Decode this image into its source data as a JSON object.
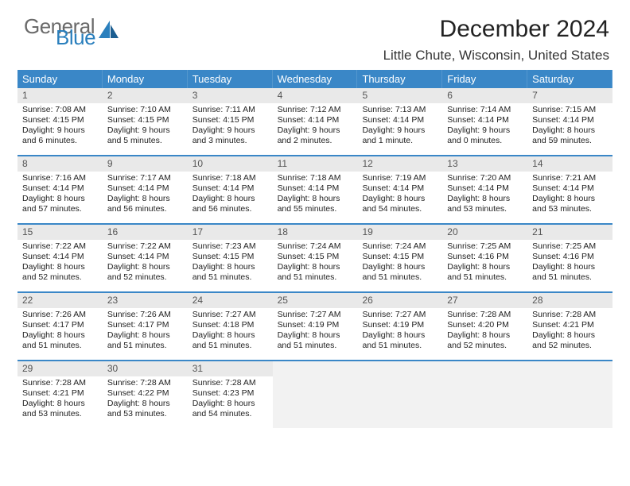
{
  "logo": {
    "line1": "General",
    "line2": "Blue"
  },
  "title": "December 2024",
  "subtitle": "Little Chute, Wisconsin, United States",
  "colors": {
    "header_bg": "#3a87c7",
    "header_fg": "#ffffff",
    "daynum_bg": "#e9e9e9",
    "daynum_fg": "#555555",
    "week_divider": "#3a87c7",
    "logo_gray": "#6a6a6a",
    "logo_blue": "#2a7fbd",
    "body_bg": "#ffffff",
    "text": "#222222"
  },
  "day_headers": [
    "Sunday",
    "Monday",
    "Tuesday",
    "Wednesday",
    "Thursday",
    "Friday",
    "Saturday"
  ],
  "weeks": [
    [
      {
        "n": "1",
        "sr": "Sunrise: 7:08 AM",
        "ss": "Sunset: 4:15 PM",
        "d1": "Daylight: 9 hours",
        "d2": "and 6 minutes."
      },
      {
        "n": "2",
        "sr": "Sunrise: 7:10 AM",
        "ss": "Sunset: 4:15 PM",
        "d1": "Daylight: 9 hours",
        "d2": "and 5 minutes."
      },
      {
        "n": "3",
        "sr": "Sunrise: 7:11 AM",
        "ss": "Sunset: 4:15 PM",
        "d1": "Daylight: 9 hours",
        "d2": "and 3 minutes."
      },
      {
        "n": "4",
        "sr": "Sunrise: 7:12 AM",
        "ss": "Sunset: 4:14 PM",
        "d1": "Daylight: 9 hours",
        "d2": "and 2 minutes."
      },
      {
        "n": "5",
        "sr": "Sunrise: 7:13 AM",
        "ss": "Sunset: 4:14 PM",
        "d1": "Daylight: 9 hours",
        "d2": "and 1 minute."
      },
      {
        "n": "6",
        "sr": "Sunrise: 7:14 AM",
        "ss": "Sunset: 4:14 PM",
        "d1": "Daylight: 9 hours",
        "d2": "and 0 minutes."
      },
      {
        "n": "7",
        "sr": "Sunrise: 7:15 AM",
        "ss": "Sunset: 4:14 PM",
        "d1": "Daylight: 8 hours",
        "d2": "and 59 minutes."
      }
    ],
    [
      {
        "n": "8",
        "sr": "Sunrise: 7:16 AM",
        "ss": "Sunset: 4:14 PM",
        "d1": "Daylight: 8 hours",
        "d2": "and 57 minutes."
      },
      {
        "n": "9",
        "sr": "Sunrise: 7:17 AM",
        "ss": "Sunset: 4:14 PM",
        "d1": "Daylight: 8 hours",
        "d2": "and 56 minutes."
      },
      {
        "n": "10",
        "sr": "Sunrise: 7:18 AM",
        "ss": "Sunset: 4:14 PM",
        "d1": "Daylight: 8 hours",
        "d2": "and 56 minutes."
      },
      {
        "n": "11",
        "sr": "Sunrise: 7:18 AM",
        "ss": "Sunset: 4:14 PM",
        "d1": "Daylight: 8 hours",
        "d2": "and 55 minutes."
      },
      {
        "n": "12",
        "sr": "Sunrise: 7:19 AM",
        "ss": "Sunset: 4:14 PM",
        "d1": "Daylight: 8 hours",
        "d2": "and 54 minutes."
      },
      {
        "n": "13",
        "sr": "Sunrise: 7:20 AM",
        "ss": "Sunset: 4:14 PM",
        "d1": "Daylight: 8 hours",
        "d2": "and 53 minutes."
      },
      {
        "n": "14",
        "sr": "Sunrise: 7:21 AM",
        "ss": "Sunset: 4:14 PM",
        "d1": "Daylight: 8 hours",
        "d2": "and 53 minutes."
      }
    ],
    [
      {
        "n": "15",
        "sr": "Sunrise: 7:22 AM",
        "ss": "Sunset: 4:14 PM",
        "d1": "Daylight: 8 hours",
        "d2": "and 52 minutes."
      },
      {
        "n": "16",
        "sr": "Sunrise: 7:22 AM",
        "ss": "Sunset: 4:14 PM",
        "d1": "Daylight: 8 hours",
        "d2": "and 52 minutes."
      },
      {
        "n": "17",
        "sr": "Sunrise: 7:23 AM",
        "ss": "Sunset: 4:15 PM",
        "d1": "Daylight: 8 hours",
        "d2": "and 51 minutes."
      },
      {
        "n": "18",
        "sr": "Sunrise: 7:24 AM",
        "ss": "Sunset: 4:15 PM",
        "d1": "Daylight: 8 hours",
        "d2": "and 51 minutes."
      },
      {
        "n": "19",
        "sr": "Sunrise: 7:24 AM",
        "ss": "Sunset: 4:15 PM",
        "d1": "Daylight: 8 hours",
        "d2": "and 51 minutes."
      },
      {
        "n": "20",
        "sr": "Sunrise: 7:25 AM",
        "ss": "Sunset: 4:16 PM",
        "d1": "Daylight: 8 hours",
        "d2": "and 51 minutes."
      },
      {
        "n": "21",
        "sr": "Sunrise: 7:25 AM",
        "ss": "Sunset: 4:16 PM",
        "d1": "Daylight: 8 hours",
        "d2": "and 51 minutes."
      }
    ],
    [
      {
        "n": "22",
        "sr": "Sunrise: 7:26 AM",
        "ss": "Sunset: 4:17 PM",
        "d1": "Daylight: 8 hours",
        "d2": "and 51 minutes."
      },
      {
        "n": "23",
        "sr": "Sunrise: 7:26 AM",
        "ss": "Sunset: 4:17 PM",
        "d1": "Daylight: 8 hours",
        "d2": "and 51 minutes."
      },
      {
        "n": "24",
        "sr": "Sunrise: 7:27 AM",
        "ss": "Sunset: 4:18 PM",
        "d1": "Daylight: 8 hours",
        "d2": "and 51 minutes."
      },
      {
        "n": "25",
        "sr": "Sunrise: 7:27 AM",
        "ss": "Sunset: 4:19 PM",
        "d1": "Daylight: 8 hours",
        "d2": "and 51 minutes."
      },
      {
        "n": "26",
        "sr": "Sunrise: 7:27 AM",
        "ss": "Sunset: 4:19 PM",
        "d1": "Daylight: 8 hours",
        "d2": "and 51 minutes."
      },
      {
        "n": "27",
        "sr": "Sunrise: 7:28 AM",
        "ss": "Sunset: 4:20 PM",
        "d1": "Daylight: 8 hours",
        "d2": "and 52 minutes."
      },
      {
        "n": "28",
        "sr": "Sunrise: 7:28 AM",
        "ss": "Sunset: 4:21 PM",
        "d1": "Daylight: 8 hours",
        "d2": "and 52 minutes."
      }
    ],
    [
      {
        "n": "29",
        "sr": "Sunrise: 7:28 AM",
        "ss": "Sunset: 4:21 PM",
        "d1": "Daylight: 8 hours",
        "d2": "and 53 minutes."
      },
      {
        "n": "30",
        "sr": "Sunrise: 7:28 AM",
        "ss": "Sunset: 4:22 PM",
        "d1": "Daylight: 8 hours",
        "d2": "and 53 minutes."
      },
      {
        "n": "31",
        "sr": "Sunrise: 7:28 AM",
        "ss": "Sunset: 4:23 PM",
        "d1": "Daylight: 8 hours",
        "d2": "and 54 minutes."
      },
      null,
      null,
      null,
      null
    ]
  ]
}
